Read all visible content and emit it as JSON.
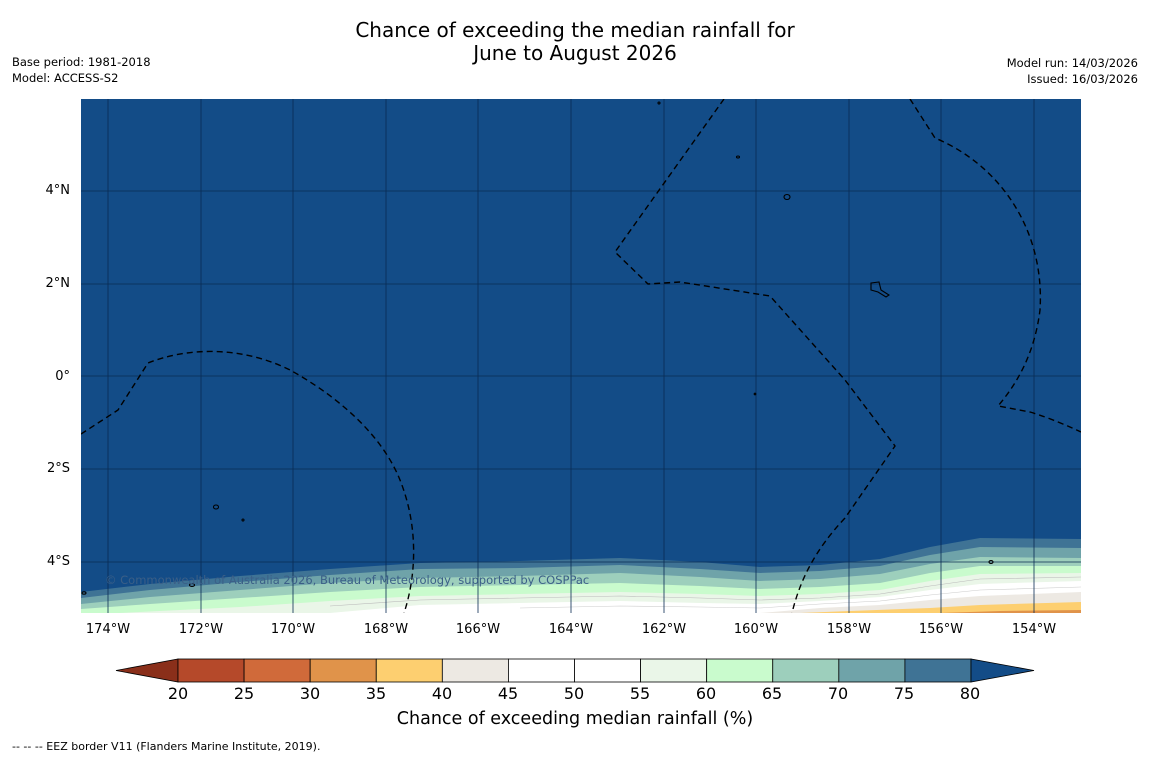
{
  "title": {
    "line1": "Chance of exceeding the median rainfall for",
    "line2": "June to August 2026"
  },
  "meta_left": {
    "base_period": "Base period: 1981-2018",
    "model": "Model: ACCESS-S2"
  },
  "meta_right": {
    "model_run": "Model run: 14/03/2026",
    "issued": "Issued: 16/03/2026"
  },
  "map": {
    "background_color": "#134c87",
    "lat_labels": [
      "4°N",
      "2°N",
      "0°",
      "2°S",
      "4°S"
    ],
    "lon_labels": [
      "174°W",
      "172°W",
      "170°W",
      "168°W",
      "166°W",
      "164°W",
      "162°W",
      "160°W",
      "158°W",
      "156°W",
      "154°W"
    ],
    "copyright": "© Commonwealth of Australia 2026, Bureau of Meteorology, supported by COSPPac"
  },
  "colorbar": {
    "ticks": [
      "20",
      "25",
      "30",
      "35",
      "40",
      "45",
      "50",
      "55",
      "60",
      "65",
      "70",
      "75",
      "80"
    ],
    "colors": [
      "#b5492a",
      "#d06a3a",
      "#e0934a",
      "#fdcf70",
      "#ede9e3",
      "#ffffff",
      "#ffffff",
      "#eaf6e8",
      "#c9fbcd",
      "#9dcfbc",
      "#6fa3a9",
      "#3f7395"
    ],
    "under_color": "#8a2f1a",
    "over_color": "#134c87",
    "title": "Chance of exceeding median rainfall (%)"
  },
  "footnote": "--  --  -- EEZ border V11 (Flanders Marine Institute, 2019)."
}
